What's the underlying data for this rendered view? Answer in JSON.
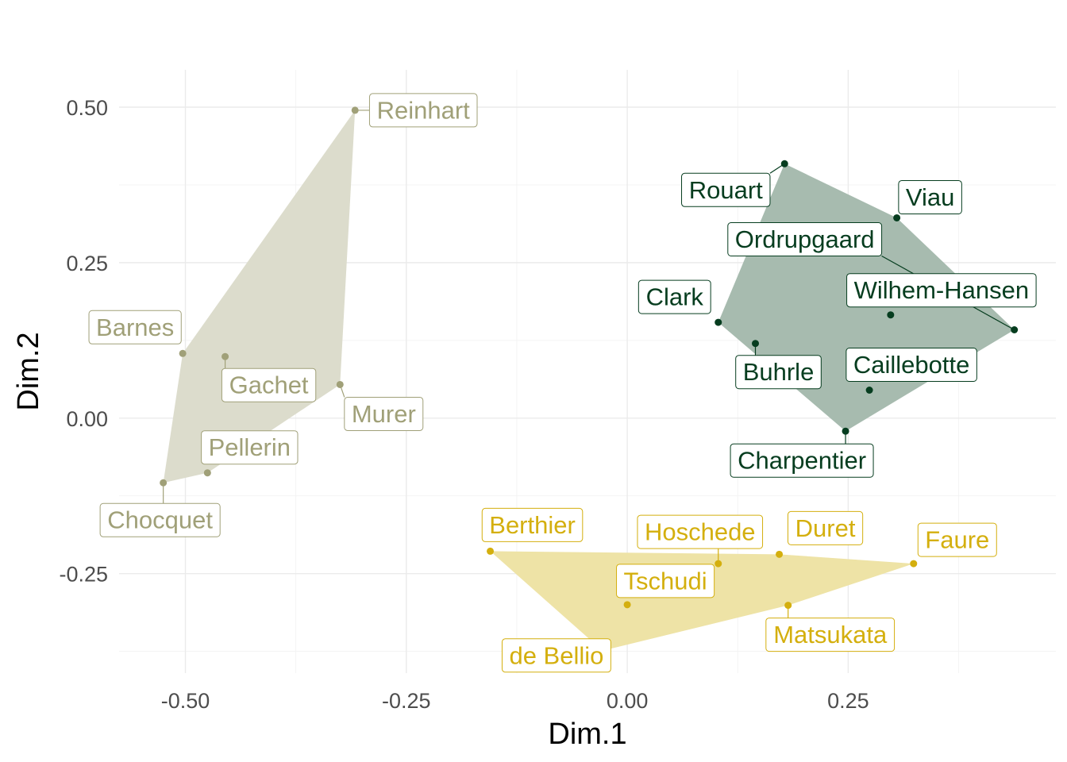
{
  "chart_data": {
    "type": "scatter",
    "title": "",
    "xlabel": "Dim.1",
    "ylabel": "Dim.2",
    "xlim": [
      -0.575,
      0.485
    ],
    "ylim": [
      -0.41,
      0.56
    ],
    "xticks": [
      -0.5,
      -0.25,
      0,
      0.25
    ],
    "xtick_labels": [
      "-0.50",
      "-0.25",
      "0.00",
      "0.25"
    ],
    "yticks": [
      0.5,
      0.25,
      0,
      -0.25
    ],
    "ytick_labels": [
      "0.50",
      "0.25",
      "0.00",
      "-0.25"
    ],
    "grid": true,
    "legend": "none",
    "groups": [
      {
        "color": "#a0a078",
        "fill": "#dcdccc",
        "points": [
          {
            "label": "Reinhart",
            "x": -0.308,
            "y": 0.495
          },
          {
            "label": "Barnes",
            "x": -0.503,
            "y": 0.104
          },
          {
            "label": "Gachet",
            "x": -0.455,
            "y": 0.099
          },
          {
            "label": "Murer",
            "x": -0.325,
            "y": 0.054
          },
          {
            "label": "Pellerin",
            "x": -0.475,
            "y": -0.088
          },
          {
            "label": "Chocquet",
            "x": -0.525,
            "y": -0.104
          }
        ]
      },
      {
        "color": "#063d1f",
        "fill": "#a7bbaf",
        "points": [
          {
            "label": "Rouart",
            "x": 0.178,
            "y": 0.409
          },
          {
            "label": "Viau",
            "x": 0.305,
            "y": 0.322
          },
          {
            "label": "Ordrupgaard",
            "x": 0.438,
            "y": 0.142
          },
          {
            "label": "Wilhem-Hansen",
            "x": 0.298,
            "y": 0.166
          },
          {
            "label": "Clark",
            "x": 0.103,
            "y": 0.154
          },
          {
            "label": "Buhrle",
            "x": 0.145,
            "y": 0.12
          },
          {
            "label": "Caillebotte",
            "x": 0.274,
            "y": 0.045
          },
          {
            "label": "Charpentier",
            "x": 0.247,
            "y": -0.021
          }
        ]
      },
      {
        "color": "#d4af0e",
        "fill": "#eee3a6",
        "points": [
          {
            "label": "Berthier",
            "x": -0.155,
            "y": -0.214
          },
          {
            "label": "Hoschede",
            "x": 0.103,
            "y": -0.234
          },
          {
            "label": "Duret",
            "x": 0.172,
            "y": -0.219
          },
          {
            "label": "Faure",
            "x": 0.324,
            "y": -0.234
          },
          {
            "label": "Tschudi",
            "x": 0.0,
            "y": -0.3
          },
          {
            "label": "Matsukata",
            "x": 0.182,
            "y": -0.301
          },
          {
            "label": "de Bellio",
            "x": -0.028,
            "y": -0.374
          }
        ]
      }
    ]
  }
}
